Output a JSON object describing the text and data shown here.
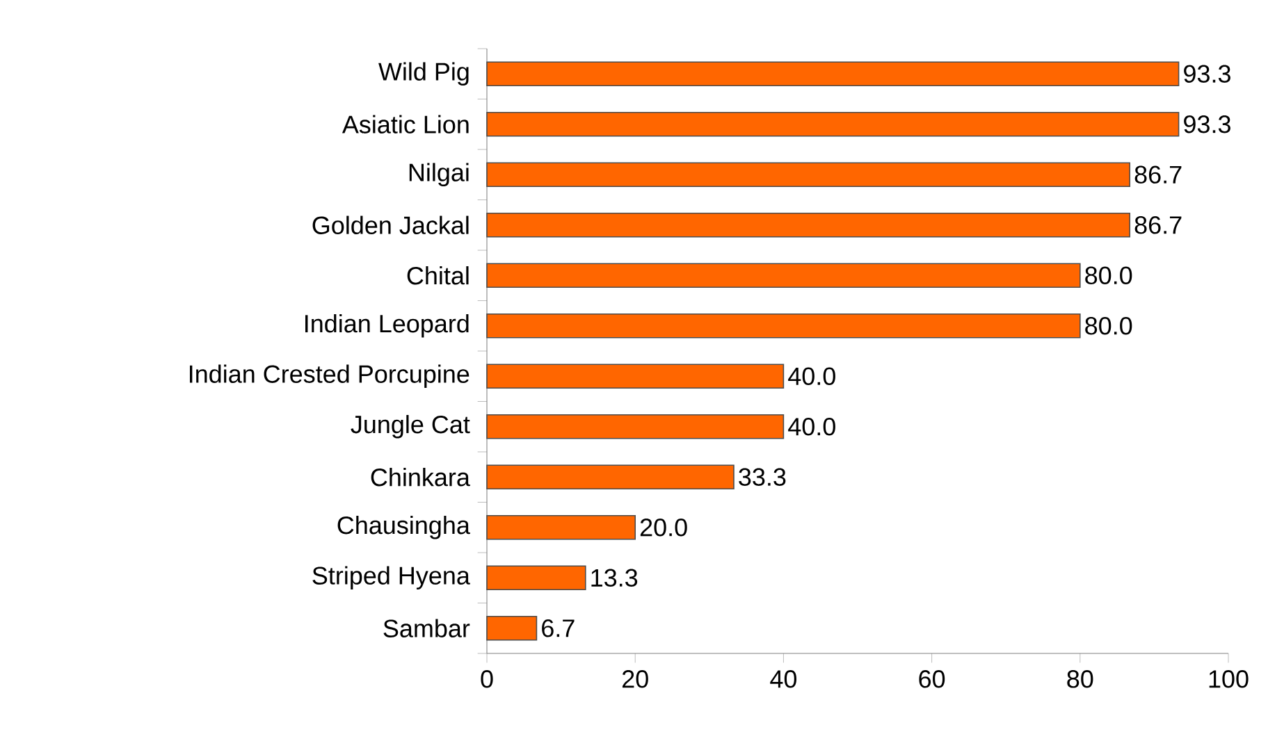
{
  "chart_data": {
    "type": "bar",
    "orientation": "horizontal",
    "categories": [
      "Wild Pig",
      "Asiatic Lion",
      "Nilgai",
      "Golden Jackal",
      "Chital",
      "Indian Leopard",
      "Indian Crested Porcupine",
      "Jungle Cat",
      "Chinkara",
      "Chausingha",
      "Striped Hyena",
      "Sambar"
    ],
    "values": [
      93.3,
      93.3,
      86.7,
      86.7,
      80.0,
      80.0,
      40.0,
      40.0,
      33.3,
      20.0,
      13.3,
      6.7
    ],
    "value_labels": [
      "93.3",
      "93.3",
      "86.7",
      "86.7",
      "80.0",
      "80.0",
      "40.0",
      "40.0",
      "33.3",
      "20.0",
      "13.3",
      "6.7"
    ],
    "color": "#ff6600",
    "xlim": [
      0,
      100
    ],
    "xticks": [
      0,
      20,
      40,
      60,
      80,
      100
    ]
  }
}
